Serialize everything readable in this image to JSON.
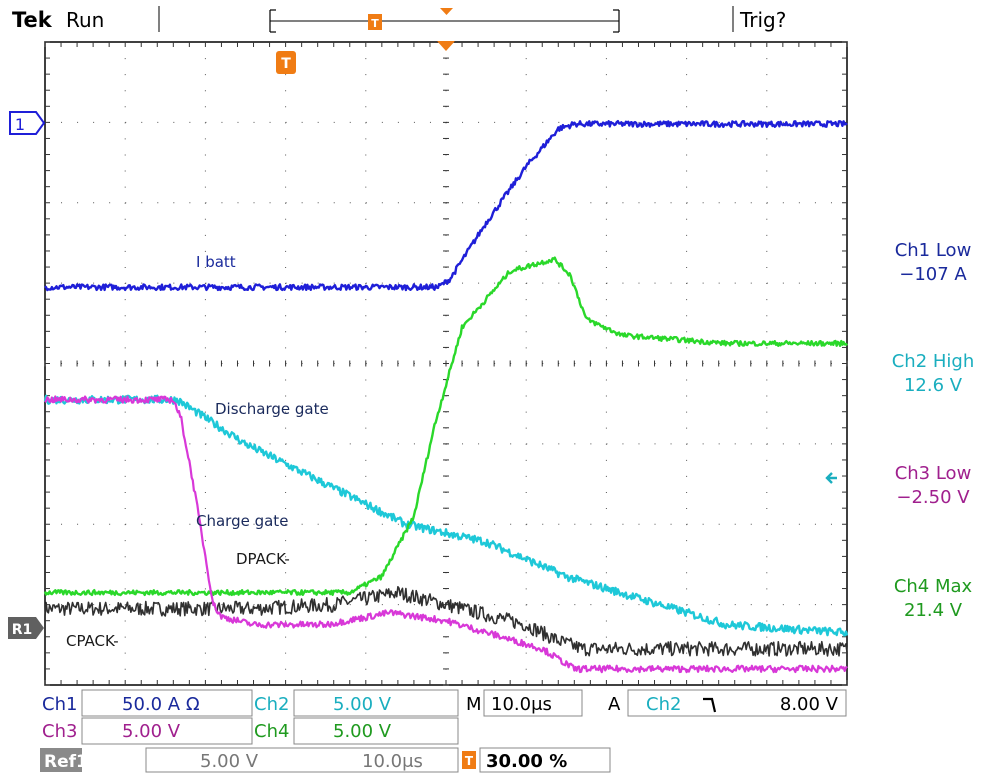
{
  "header": {
    "brand": "Tek",
    "status": "Run",
    "trigger_status": "Trig?",
    "trigger_marker": "T"
  },
  "markers": {
    "ch1_marker": "1",
    "ref_marker": "R1",
    "time_marker": "T"
  },
  "colors": {
    "ch1": "#1f1fd8",
    "ch2": "#1ec8d8",
    "ch3": "#d838d8",
    "ch4": "#2ad82a",
    "ref1": "#303030",
    "trigger": "#f07c14"
  },
  "measurements": [
    {
      "label": "Ch1 Low",
      "value": "−107 A",
      "color": "#1a2a9c"
    },
    {
      "label": "Ch2 High",
      "value": "12.6 V",
      "color": "#1aaebf"
    },
    {
      "label": "Ch3 Low",
      "value": "−2.50 V",
      "color": "#a0208e"
    },
    {
      "label": "Ch4 Max",
      "value": "21.4 V",
      "color": "#1f9a1f"
    }
  ],
  "footer": {
    "row1": {
      "ch1_label": "Ch1",
      "ch1_value": "50.0 A Ω",
      "ch2_label": "Ch2",
      "ch2_value": "5.00 V",
      "m_label": "M",
      "m_value": "10.0μs",
      "a_label": "A",
      "trig_source": "Ch2",
      "trig_slope": "Ⲣ",
      "trig_level": "8.00 V"
    },
    "row2": {
      "ch3_label": "Ch3",
      "ch3_value": "5.00 V",
      "ch4_label": "Ch4",
      "ch4_value": "5.00 V"
    },
    "row3": {
      "ref_label": "Ref1",
      "ref_volts": "5.00 V",
      "ref_time": "10.0μs",
      "trig_icon": "T",
      "trig_pos": "30.00 %"
    }
  },
  "chart_data": {
    "type": "line",
    "grid": true,
    "x_divisions": 10,
    "y_divisions": 8,
    "xlim": [
      0,
      10
    ],
    "ylim": [
      0,
      8
    ],
    "series": [
      {
        "key": "ch1",
        "color": "#1f1fd8",
        "x": [
          0,
          4.9,
          5.05,
          5.5,
          6.0,
          6.4,
          6.6,
          10
        ],
        "y": [
          4.95,
          4.95,
          5.05,
          5.75,
          6.45,
          6.92,
          6.98,
          6.98
        ]
      },
      {
        "key": "ch2",
        "color": "#1ec8d8",
        "x": [
          0,
          1.65,
          2.5,
          3.5,
          4.5,
          5.5,
          6.5,
          7.5,
          8.5,
          10
        ],
        "y": [
          3.55,
          3.55,
          3.0,
          2.5,
          2.0,
          1.78,
          1.35,
          1.05,
          0.75,
          0.65
        ]
      },
      {
        "key": "ch3",
        "color": "#d838d8",
        "x": [
          0,
          1.6,
          1.7,
          1.85,
          2.0,
          2.1,
          2.2,
          2.6,
          3.5,
          4.3,
          5.0,
          6.2,
          6.6,
          10
        ],
        "y": [
          3.55,
          3.55,
          3.3,
          2.5,
          1.6,
          1.0,
          0.85,
          0.75,
          0.75,
          0.9,
          0.8,
          0.45,
          0.2,
          0.2
        ]
      },
      {
        "key": "ch4",
        "color": "#2ad82a",
        "x": [
          0,
          3.8,
          4.2,
          4.6,
          4.85,
          5.2,
          5.8,
          6.35,
          6.55,
          6.75,
          7.2,
          8.5,
          10
        ],
        "y": [
          1.15,
          1.15,
          1.35,
          2.1,
          3.2,
          4.45,
          5.15,
          5.3,
          5.1,
          4.55,
          4.35,
          4.25,
          4.25
        ]
      },
      {
        "key": "ref1",
        "color": "#303030",
        "x": [
          0,
          2.0,
          2.6,
          3.6,
          4.4,
          5.0,
          6.0,
          6.4,
          6.7,
          10
        ],
        "y": [
          0.95,
          0.95,
          0.95,
          1.0,
          1.15,
          1.0,
          0.75,
          0.55,
          0.45,
          0.45
        ]
      }
    ],
    "annotations": [
      "I batt",
      "Discharge gate",
      "Charge gate",
      "DPACK-",
      "CPACK-"
    ]
  }
}
